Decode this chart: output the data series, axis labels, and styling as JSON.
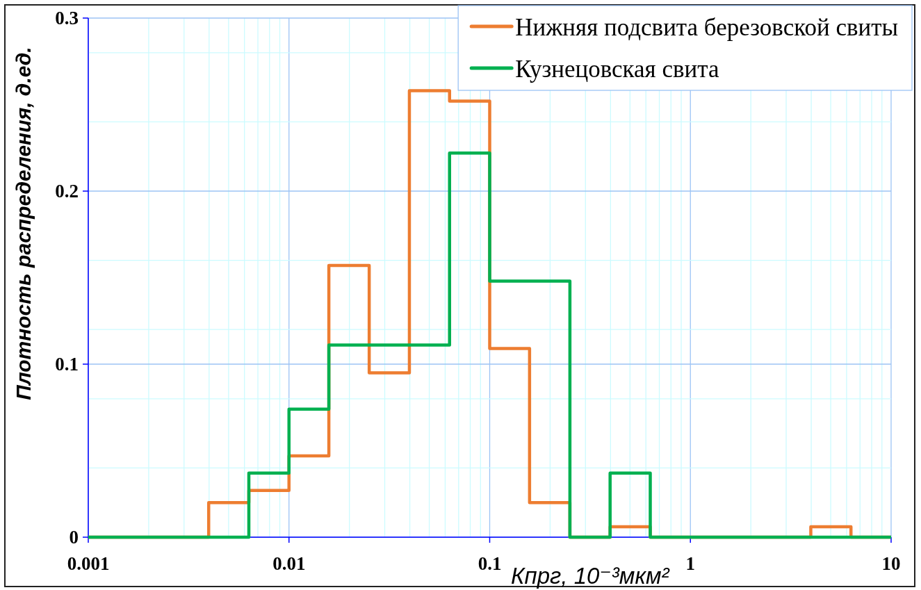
{
  "chart_data": {
    "type": "histogram",
    "xlabel": "Кпрг, 10⁻³мкм²",
    "ylabel": "Плотность распределения, д.ед.",
    "bins": [
      0.001,
      0.00158,
      0.00251,
      0.00398,
      0.00631,
      0.01,
      0.0158,
      0.0251,
      0.0398,
      0.0631,
      0.1,
      0.158,
      0.251,
      0.398,
      0.631,
      1,
      1.58,
      2.51,
      3.98,
      6.31,
      10
    ],
    "series": [
      {
        "name": "Нижняя подсвита березовской свиты",
        "color": "#ed7d31",
        "values": [
          0,
          0,
          0,
          0.02,
          0.027,
          0.047,
          0.157,
          0.095,
          0.258,
          0.252,
          0.109,
          0.02,
          0,
          0.006,
          0,
          0,
          0,
          0,
          0.006,
          0
        ]
      },
      {
        "name": "Кузнецовская свита",
        "color": "#00b050",
        "values": [
          0,
          0,
          0,
          0,
          0.037,
          0.074,
          0.111,
          0.111,
          0.111,
          0.222,
          0.148,
          0.148,
          0,
          0.037,
          0,
          0,
          0,
          0,
          0,
          0
        ]
      }
    ],
    "xlim": [
      0.001,
      10
    ],
    "ylim": [
      0,
      0.3
    ],
    "xticks": [
      0.001,
      {
        "value": 0.002,
        "label": null
      },
      {
        "value": 0.003,
        "label": null
      },
      {
        "value": 0.004,
        "label": null
      },
      {
        "value": 0.005,
        "label": null
      },
      {
        "value": 0.006,
        "label": null
      },
      {
        "value": 0.007,
        "label": null
      },
      {
        "value": 0.008,
        "label": null
      },
      {
        "value": 0.009,
        "label": null
      },
      0.01,
      {
        "value": 0.02,
        "label": null
      },
      {
        "value": 0.03,
        "label": null
      },
      {
        "value": 0.04,
        "label": null
      },
      {
        "value": 0.05,
        "label": null
      },
      {
        "value": 0.06,
        "label": null
      },
      {
        "value": 0.07,
        "label": null
      },
      {
        "value": 0.08,
        "label": null
      },
      {
        "value": 0.09,
        "label": null
      },
      0.1,
      {
        "value": 0.2,
        "label": null
      },
      {
        "value": 0.3,
        "label": null
      },
      {
        "value": 0.4,
        "label": null
      },
      {
        "value": 0.5,
        "label": null
      },
      {
        "value": 0.6,
        "label": null
      },
      {
        "value": 0.7,
        "label": null
      },
      {
        "value": 0.8,
        "label": null
      },
      {
        "value": 0.9,
        "label": null
      },
      1,
      {
        "value": 2,
        "label": null
      },
      {
        "value": 3,
        "label": null
      },
      {
        "value": 4,
        "label": null
      },
      {
        "value": 5,
        "label": null
      },
      {
        "value": 6,
        "label": null
      },
      {
        "value": 7,
        "label": null
      },
      {
        "value": 8,
        "label": null
      },
      {
        "value": 9,
        "label": null
      },
      10
    ],
    "yticks": [
      0,
      {
        "value": 0.04,
        "label": null
      },
      {
        "value": 0.08,
        "label": null
      },
      0.1,
      {
        "value": 0.12,
        "label": null
      },
      {
        "value": 0.16,
        "label": null
      },
      0.2,
      {
        "value": 0.24,
        "label": null
      },
      {
        "value": 0.28,
        "label": null
      },
      0.3
    ],
    "log": "x",
    "grid": true,
    "legend": "top right"
  }
}
